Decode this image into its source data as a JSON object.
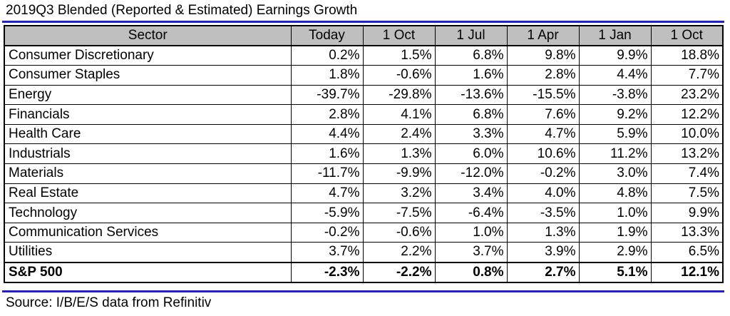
{
  "title": "2019Q3 Blended (Reported & Estimated) Earnings Growth",
  "source": "Source: I/B/E/S data from Refinitiv",
  "table": {
    "columns": [
      "Sector",
      "Today",
      "1 Oct",
      "1 Jul",
      "1 Apr",
      "1 Jan",
      "1 Oct"
    ],
    "rows": [
      [
        "Consumer Discretionary",
        "0.2%",
        "1.5%",
        "6.8%",
        "9.8%",
        "9.9%",
        "18.8%"
      ],
      [
        "Consumer Staples",
        "1.8%",
        "-0.6%",
        "1.6%",
        "2.8%",
        "4.4%",
        "7.7%"
      ],
      [
        "Energy",
        "-39.7%",
        "-29.8%",
        "-13.6%",
        "-15.5%",
        "-3.8%",
        "23.2%"
      ],
      [
        "Financials",
        "2.8%",
        "4.1%",
        "6.8%",
        "7.6%",
        "9.2%",
        "12.2%"
      ],
      [
        "Health Care",
        "4.4%",
        "2.4%",
        "3.3%",
        "4.7%",
        "5.9%",
        "10.0%"
      ],
      [
        "Industrials",
        "1.6%",
        "1.3%",
        "6.0%",
        "10.6%",
        "11.2%",
        "13.2%"
      ],
      [
        "Materials",
        "-11.7%",
        "-9.9%",
        "-12.0%",
        "-0.2%",
        "3.0%",
        "7.4%"
      ],
      [
        "Real Estate",
        "4.7%",
        "3.2%",
        "3.4%",
        "4.0%",
        "4.8%",
        "7.5%"
      ],
      [
        "Technology",
        "-5.9%",
        "-7.5%",
        "-6.4%",
        "-3.5%",
        "1.0%",
        "9.9%"
      ],
      [
        "Communication Services",
        "-0.2%",
        "-0.6%",
        "1.0%",
        "1.3%",
        "1.9%",
        "13.3%"
      ],
      [
        "Utilities",
        "3.7%",
        "2.2%",
        "3.7%",
        "3.9%",
        "2.9%",
        "6.5%"
      ]
    ],
    "total": [
      "S&P 500",
      "-2.3%",
      "-2.2%",
      "0.8%",
      "2.7%",
      "5.1%",
      "12.1%"
    ]
  },
  "colors": {
    "header_bg": "#bfbfbf",
    "rule": "#1f1fd6"
  }
}
